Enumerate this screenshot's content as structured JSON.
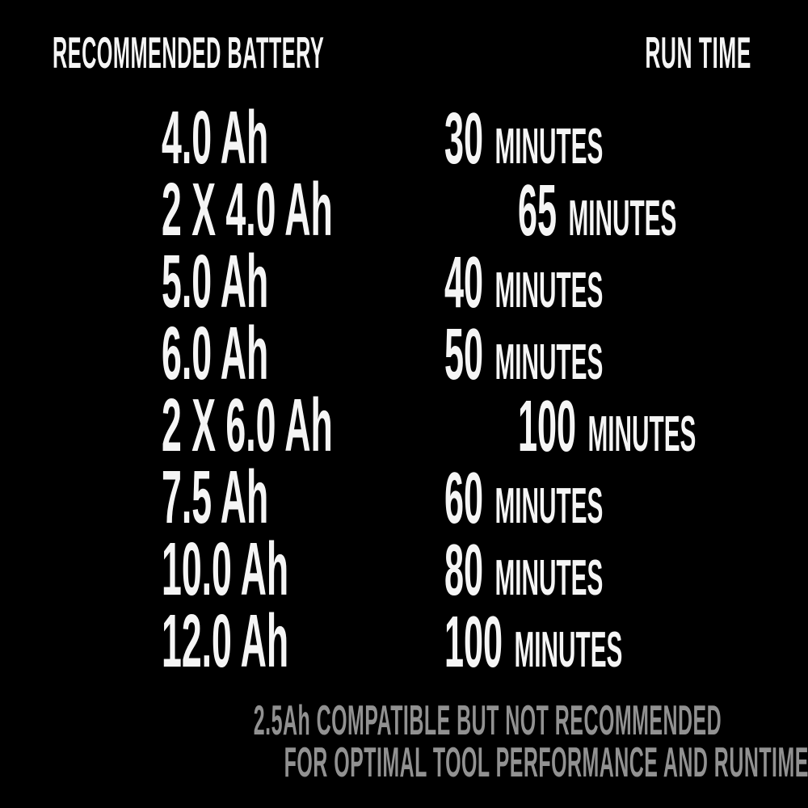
{
  "header": {
    "left": "RECOMMENDED BATTERY",
    "right": "RUN TIME"
  },
  "rows": [
    {
      "battery": "4.0 Ah",
      "minutes": "30",
      "unit": "MINUTES"
    },
    {
      "battery": "2 X 4.0 Ah",
      "minutes": "65",
      "unit": "MINUTES"
    },
    {
      "battery": "5.0 Ah",
      "minutes": "40",
      "unit": "MINUTES"
    },
    {
      "battery": "6.0 Ah",
      "minutes": "50",
      "unit": "MINUTES"
    },
    {
      "battery": "2 X 6.0 Ah",
      "minutes": "100",
      "unit": "MINUTES"
    },
    {
      "battery": "7.5 Ah",
      "minutes": "60",
      "unit": "MINUTES"
    },
    {
      "battery": "10.0 Ah",
      "minutes": "80",
      "unit": "MINUTES"
    },
    {
      "battery": "12.0 Ah",
      "minutes": "100",
      "unit": "MINUTES"
    }
  ],
  "footer": {
    "line1": "2.5Ah COMPATIBLE BUT NOT RECOMMENDED",
    "line2": "FOR OPTIMAL TOOL PERFORMANCE AND RUNTIME"
  },
  "colors": {
    "background": "#000000",
    "text": "#f5f5f5",
    "footer_text": "#919191"
  },
  "chart_data": {
    "type": "table",
    "title": "Recommended Battery vs Run Time",
    "columns": [
      "RECOMMENDED BATTERY",
      "RUN TIME"
    ],
    "rows": [
      [
        "4.0 Ah",
        "30 MINUTES"
      ],
      [
        "2 X 4.0 Ah",
        "65 MINUTES"
      ],
      [
        "5.0 Ah",
        "40 MINUTES"
      ],
      [
        "6.0 Ah",
        "50 MINUTES"
      ],
      [
        "2 X 6.0 Ah",
        "100 MINUTES"
      ],
      [
        "7.5 Ah",
        "60 MINUTES"
      ],
      [
        "10.0 Ah",
        "80 MINUTES"
      ],
      [
        "12.0 Ah",
        "100 MINUTES"
      ]
    ],
    "runtime_minutes": [
      30,
      65,
      40,
      50,
      100,
      60,
      80,
      100
    ],
    "battery_labels": [
      "4.0 Ah",
      "2 X 4.0 Ah",
      "5.0 Ah",
      "6.0 Ah",
      "2 X 6.0 Ah",
      "7.5 Ah",
      "10.0 Ah",
      "12.0 Ah"
    ],
    "footnote": "2.5Ah COMPATIBLE BUT NOT RECOMMENDED FOR OPTIMAL TOOL PERFORMANCE AND RUNTIME"
  }
}
